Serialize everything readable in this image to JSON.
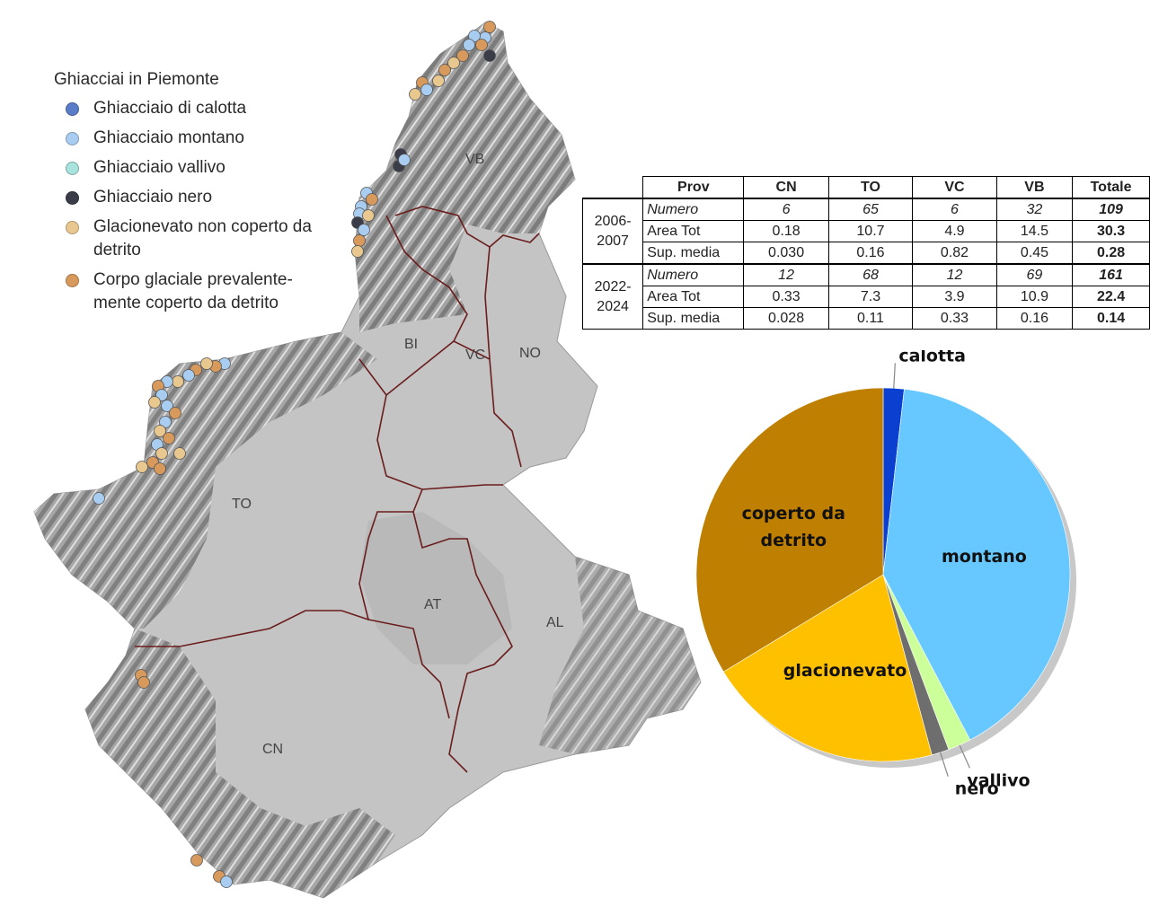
{
  "legend": {
    "title": "Ghiacciai in Piemonte",
    "items": [
      {
        "label": "Ghiacciaio di calotta",
        "color": "#5b7cc8"
      },
      {
        "label": "Ghiacciaio montano",
        "color": "#a9cdf0"
      },
      {
        "label": "Ghiacciaio vallivo",
        "color": "#a8e3dd"
      },
      {
        "label": "Ghiacciaio nero",
        "color": "#3a3d48"
      },
      {
        "label": "Glacionevato non coperto da detrito",
        "color": "#e8c88e"
      },
      {
        "label": "Corpo glaciale prevalente-mente coperto da detrito",
        "color": "#d89a5c"
      }
    ]
  },
  "provinces": [
    "VB",
    "BI",
    "VC",
    "NO",
    "TO",
    "AT",
    "AL",
    "CN"
  ],
  "table": {
    "headers": [
      "Prov",
      "CN",
      "TO",
      "VC",
      "VB",
      "Totale"
    ],
    "periods": [
      {
        "years": [
          "2006-",
          "2007"
        ],
        "rows": [
          {
            "label": "Numero",
            "values": [
              "6",
              "65",
              "6",
              "32"
            ],
            "total": "109"
          },
          {
            "label": "Area Tot",
            "values": [
              "0.18",
              "10.7",
              "4.9",
              "14.5"
            ],
            "total": "30.3"
          },
          {
            "label": "Sup. media",
            "values": [
              "0.030",
              "0.16",
              "0.82",
              "0.45"
            ],
            "total": "0.28"
          }
        ]
      },
      {
        "years": [
          "2022-",
          "2024"
        ],
        "rows": [
          {
            "label": "Numero",
            "values": [
              "12",
              "68",
              "12",
              "69"
            ],
            "total": "161"
          },
          {
            "label": "Area Tot",
            "values": [
              "0.33",
              "7.3",
              "3.9",
              "10.9"
            ],
            "total": "22.4"
          },
          {
            "label": "Sup. media",
            "values": [
              "0.028",
              "0.11",
              "0.33",
              "0.16"
            ],
            "total": "0.14"
          }
        ]
      }
    ]
  },
  "chart_data": {
    "type": "pie",
    "title": "",
    "slices": [
      {
        "label": "calotta",
        "value": 1.8,
        "color": "#0a3fd0"
      },
      {
        "label": "montano",
        "value": 40.5,
        "color": "#66c8ff"
      },
      {
        "label": "vallivo",
        "value": 2.0,
        "color": "#ccff99"
      },
      {
        "label": "nero",
        "value": 1.5,
        "color": "#6e6e6e"
      },
      {
        "label": "glacionevato",
        "value": 20.5,
        "color": "#ffc000"
      },
      {
        "label": "coperto da detrito",
        "value": 33.7,
        "color": "#bf7f00"
      }
    ]
  }
}
